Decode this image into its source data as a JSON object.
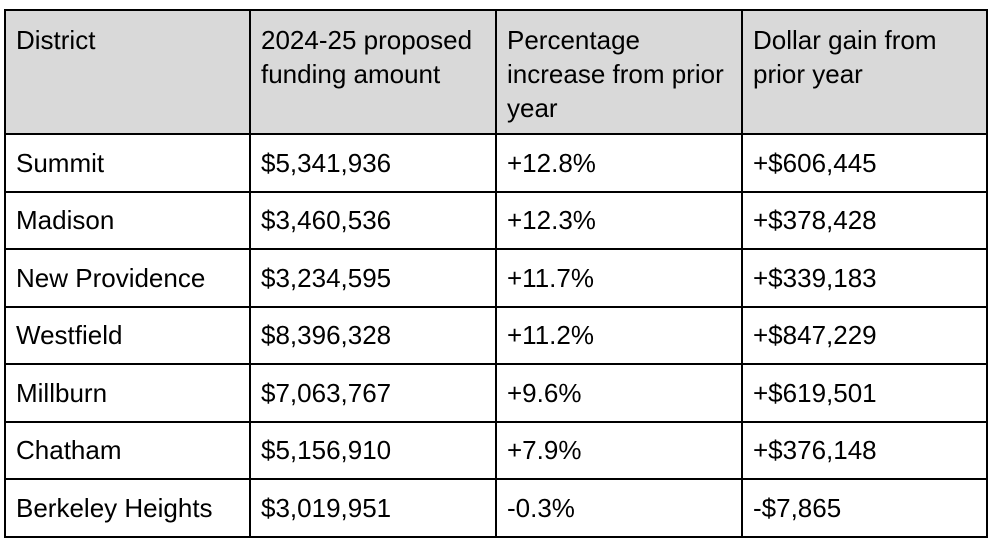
{
  "table": {
    "header": [
      "District",
      "2024-25 proposed funding amount",
      "Percentage increase from prior year",
      "Dollar gain from prior year"
    ],
    "rows": [
      [
        "Summit",
        "$5,341,936",
        "+12.8%",
        "+$606,445"
      ],
      [
        "Madison",
        "$3,460,536",
        "+12.3%",
        "+$378,428"
      ],
      [
        "New Providence",
        "$3,234,595",
        "+11.7%",
        "+$339,183"
      ],
      [
        "Westfield",
        "$8,396,328",
        "+11.2%",
        "+$847,229"
      ],
      [
        "Millburn",
        "$7,063,767",
        "+9.6%",
        "+$619,501"
      ],
      [
        "Chatham",
        "$5,156,910",
        "+7.9%",
        "+$376,148"
      ],
      [
        "Berkeley Heights",
        "$3,019,951",
        "-0.3%",
        "-$7,865"
      ]
    ]
  }
}
